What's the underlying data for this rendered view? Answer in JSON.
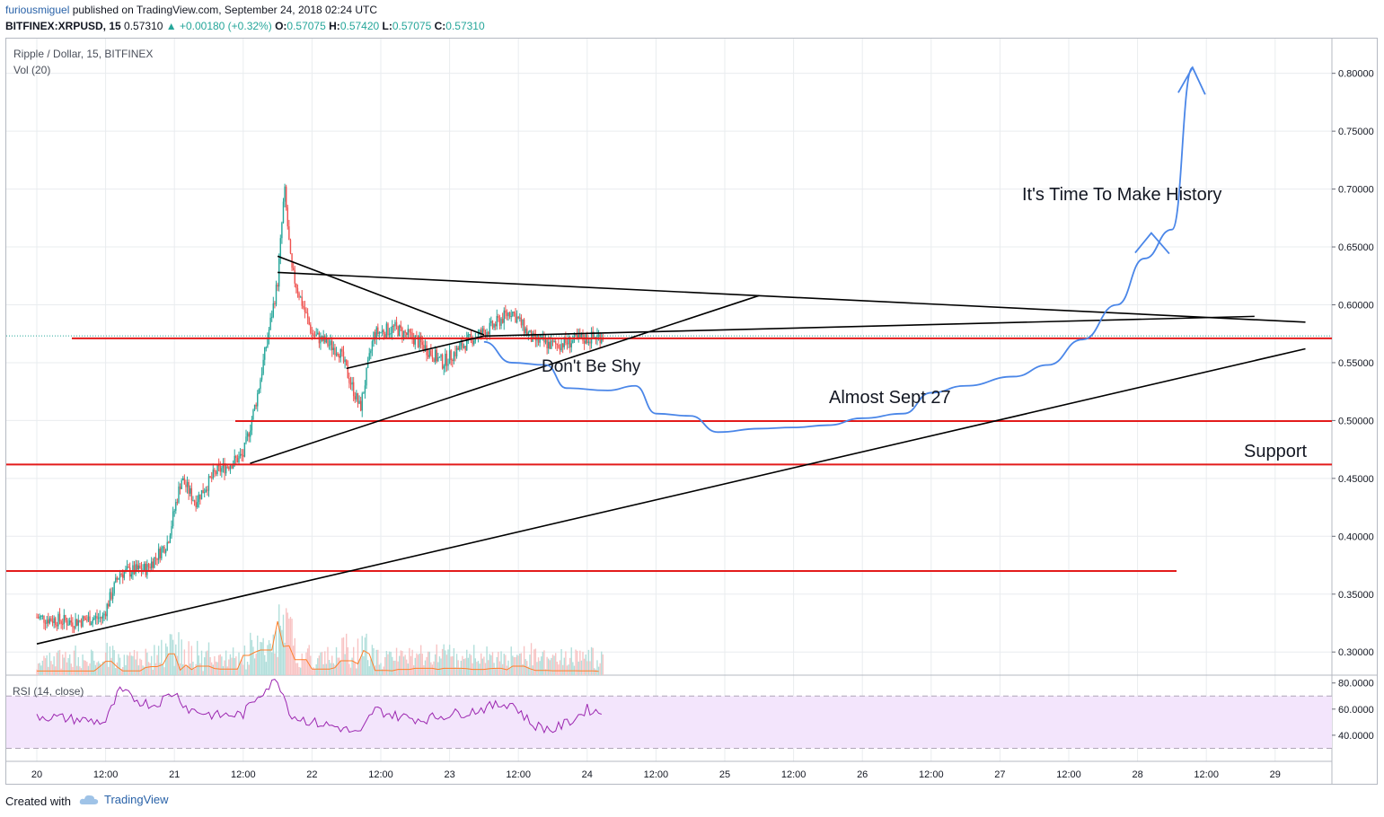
{
  "header": {
    "author": "furiousmiguel",
    "published": " published on TradingView.com, September 24, 2018 02:24 UTC",
    "symbol": "BITFINEX:XRPUSD, 15",
    "last": " 0.57310 ",
    "change": "▲ +0.00180 (+0.32%)",
    "o_label": "O:",
    "o_value": "0.57075",
    "h_label": "H:",
    "h_value": "0.57420",
    "l_label": "L:",
    "l_value": "0.57075",
    "c_label": "C:",
    "c_value": "0.57310"
  },
  "legend": {
    "title": "Ripple / Dollar, 15, BITFINEX",
    "volume": "Vol (20)",
    "rsi": "RSI (14, close)"
  },
  "annotations": {
    "history": "It's Time To Make History",
    "shy": "Don't Be Shy",
    "sept": "Almost Sept 27",
    "support": "Support"
  },
  "footer": {
    "created": "Created with",
    "brand": "TradingView"
  },
  "colors": {
    "up": "#26a69a",
    "down": "#ef5350",
    "support": "#e31b1b",
    "trend": "#000000",
    "projection": "#4a86e8",
    "rsi": "#9c27b0",
    "rsi_band": "#f3e5fc",
    "grid": "#e9ecef"
  },
  "icons": {
    "tradingview": "tradingview-cloud-icon"
  },
  "chart_data": {
    "type": "candlestick",
    "title": "Ripple / Dollar, 15, BITFINEX",
    "price_axis": {
      "ticks": [
        "0.80000",
        "0.75000",
        "0.70000",
        "0.65000",
        "0.60000",
        "0.55000",
        "0.50000",
        "0.45000",
        "0.40000",
        "0.35000",
        "0.30000"
      ],
      "range": [
        0.28,
        0.83
      ]
    },
    "rsi_axis": {
      "ticks": [
        "80.0000",
        "60.0000",
        "40.0000"
      ],
      "range": [
        20,
        86
      ],
      "bands": [
        30,
        70
      ]
    },
    "time_axis": [
      "20",
      "12:00",
      "21",
      "12:00",
      "22",
      "12:00",
      "23",
      "12:00",
      "24",
      "12:00",
      "25",
      "12:00",
      "26",
      "12:00",
      "27",
      "12:00",
      "28",
      "12:00",
      "29"
    ],
    "price_path": [
      [
        0,
        0.33
      ],
      [
        0.25,
        0.326
      ],
      [
        0.48,
        0.33
      ],
      [
        0.6,
        0.368
      ],
      [
        0.8,
        0.372
      ],
      [
        0.95,
        0.395
      ],
      [
        1.05,
        0.45
      ],
      [
        1.15,
        0.43
      ],
      [
        1.3,
        0.455
      ],
      [
        1.5,
        0.47
      ],
      [
        1.6,
        0.52
      ],
      [
        1.75,
        0.62
      ],
      [
        1.8,
        0.7
      ],
      [
        1.85,
        0.63
      ],
      [
        2.0,
        0.575
      ],
      [
        2.2,
        0.56
      ],
      [
        2.35,
        0.51
      ],
      [
        2.45,
        0.575
      ],
      [
        2.6,
        0.58
      ],
      [
        2.75,
        0.57
      ],
      [
        2.95,
        0.55
      ],
      [
        3.15,
        0.57
      ],
      [
        3.3,
        0.58
      ],
      [
        3.45,
        0.595
      ],
      [
        3.6,
        0.57
      ],
      [
        3.75,
        0.565
      ],
      [
        3.95,
        0.57
      ],
      [
        4.1,
        0.573
      ]
    ],
    "rsi_path": [
      [
        0,
        55
      ],
      [
        0.3,
        52
      ],
      [
        0.5,
        50
      ],
      [
        0.6,
        74
      ],
      [
        0.75,
        66
      ],
      [
        0.85,
        63
      ],
      [
        1.0,
        73
      ],
      [
        1.1,
        60
      ],
      [
        1.3,
        55
      ],
      [
        1.5,
        56
      ],
      [
        1.6,
        70
      ],
      [
        1.75,
        83
      ],
      [
        1.85,
        55
      ],
      [
        2.0,
        50
      ],
      [
        2.2,
        46
      ],
      [
        2.35,
        40
      ],
      [
        2.45,
        60
      ],
      [
        2.6,
        55
      ],
      [
        2.8,
        52
      ],
      [
        3.0,
        56
      ],
      [
        3.15,
        58
      ],
      [
        3.3,
        62
      ],
      [
        3.45,
        65
      ],
      [
        3.6,
        48
      ],
      [
        3.75,
        44
      ],
      [
        3.9,
        52
      ],
      [
        4.0,
        60
      ],
      [
        4.1,
        57
      ]
    ],
    "support_levels": [
      0.571,
      0.4995,
      0.462,
      0.37
    ],
    "trendlines": [
      {
        "from": [
          0,
          0.307
        ],
        "to": [
          9.22,
          0.562
        ]
      },
      {
        "from": [
          1.75,
          0.628
        ],
        "to": [
          9.22,
          0.585
        ]
      },
      {
        "from": [
          1.75,
          0.642
        ],
        "to": [
          3.25,
          0.574
        ]
      },
      {
        "from": [
          2.25,
          0.545
        ],
        "to": [
          3.25,
          0.573
        ]
      },
      {
        "from": [
          3.25,
          0.573
        ],
        "to": [
          8.85,
          0.59
        ]
      },
      {
        "from": [
          1.55,
          0.463
        ],
        "to": [
          5.25,
          0.608
        ]
      }
    ],
    "projection_path": [
      [
        3.25,
        0.568
      ],
      [
        3.45,
        0.55
      ],
      [
        3.7,
        0.548
      ],
      [
        3.85,
        0.528
      ],
      [
        4.15,
        0.526
      ],
      [
        4.35,
        0.53
      ],
      [
        4.5,
        0.506
      ],
      [
        4.75,
        0.504
      ],
      [
        4.95,
        0.49
      ],
      [
        5.25,
        0.493
      ],
      [
        5.5,
        0.494
      ],
      [
        5.75,
        0.496
      ],
      [
        6.0,
        0.502
      ],
      [
        6.3,
        0.506
      ],
      [
        6.5,
        0.524
      ],
      [
        6.75,
        0.53
      ],
      [
        7.1,
        0.538
      ],
      [
        7.35,
        0.548
      ],
      [
        7.6,
        0.57
      ],
      [
        7.85,
        0.6
      ],
      [
        8.05,
        0.64
      ],
      [
        8.25,
        0.665
      ],
      [
        8.4,
        0.805
      ]
    ]
  }
}
